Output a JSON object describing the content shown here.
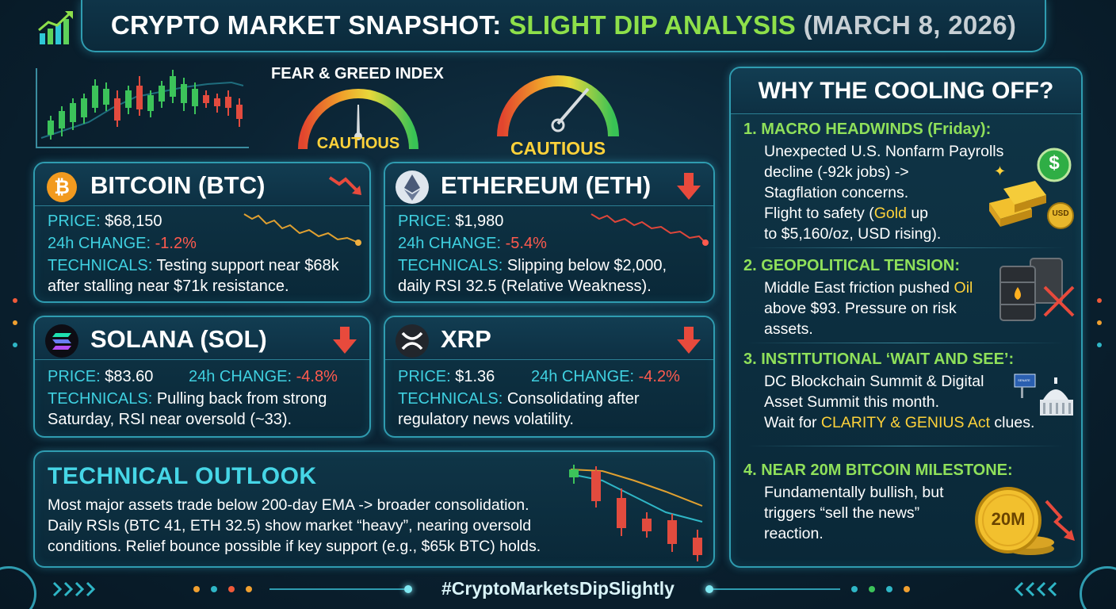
{
  "title": {
    "part1": "CRYPTO MARKET SNAPSHOT:",
    "part2": "SLIGHT DIP ANALYSIS",
    "part3": "(MARCH 8, 2026)"
  },
  "fear_greed": {
    "label": "FEAR & GREED INDEX",
    "gauge1_text": "CAUTIOUS",
    "gauge2_text": "CAUTIOUS"
  },
  "labels": {
    "price": "PRICE:",
    "change": "24h CHANGE:",
    "technicals": "TECHNICALS:"
  },
  "coins": {
    "btc": {
      "name": "BITCOIN (BTC)",
      "price": "$68,150",
      "change": "-1.2%",
      "tech_line1": "Testing support near $68k",
      "tech_line2": "after stalling near $71k resistance."
    },
    "eth": {
      "name": "ETHEREUM (ETH)",
      "price": "$1,980",
      "change": "-5.4%",
      "tech_line1": "Slipping below $2,000,",
      "tech_line2": "daily RSI 32.5 (Relative Weakness)."
    },
    "sol": {
      "name": "SOLANA (SOL)",
      "price": "$83.60",
      "change": "-4.8%",
      "tech_line1": "Pulling back from strong",
      "tech_line2": "Saturday, RSI near oversold (~33)."
    },
    "xrp": {
      "name": "XRP",
      "price": "$1.36",
      "change": "-4.2%",
      "tech_line1": "Consolidating after",
      "tech_line2": "regulatory news volatility."
    }
  },
  "outlook": {
    "heading": "TECHNICAL OUTLOOK",
    "line1": "Most major assets trade below 200-day EMA -> broader consolidation.",
    "line2": "Daily RSIs (BTC 41, ETH 32.5) show market “heavy”, nearing oversold",
    "line3": "conditions. Relief bounce possible if key support (e.g., $65k BTC) holds."
  },
  "why": {
    "title": "WHY THE COOLING OFF?",
    "items": [
      {
        "heading": "1. MACRO HEADWINDS (Friday):",
        "line1": "Unexpected U.S. Nonfarm Payrolls",
        "line2": "decline (-92k jobs) ->",
        "line3": "Stagflation concerns.",
        "line4a": "Flight to safety (",
        "line4b": "Gold",
        "line4c": " up",
        "line5": "to $5,160/oz, USD rising)."
      },
      {
        "heading": "2. GEOPOLITICAL TENSION:",
        "line1a": "Middle East friction pushed ",
        "line1b": "Oil",
        "line2": "above $93. Pressure on risk",
        "line3": "assets."
      },
      {
        "heading": "3. INSTITUTIONAL ‘WAIT AND SEE’:",
        "line1": "DC Blockchain Summit & Digital",
        "line2": "Asset Summit this month.",
        "line3a": "Wait for ",
        "line3b": "CLARITY & GENIUS Act",
        "line3c": " clues."
      },
      {
        "heading": "4. NEAR 20M BITCOIN MILESTONE:",
        "line1": "Fundamentally bullish, but",
        "line2": "triggers “sell the news”",
        "line3": "reaction."
      }
    ],
    "icon_labels": {
      "dollar": "$",
      "usd": "USD",
      "coin": "20M",
      "sign": "SENATE"
    }
  },
  "hashtag": "#CryptoMarketsDipSlightly",
  "colors": {
    "accent": "#2f9cb0",
    "green": "#8ee04a",
    "red": "#ff5a4e",
    "gold": "#ffd23a",
    "label": "#3fd0e0"
  }
}
